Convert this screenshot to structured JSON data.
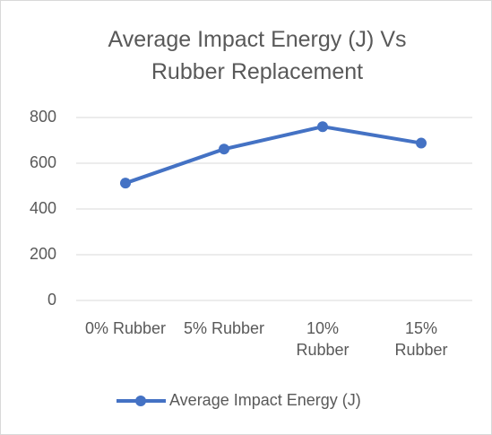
{
  "chart_data": {
    "type": "line",
    "title": "Average Impact Energy (J) Vs Rubber Replacement",
    "categories": [
      "0% Rubber",
      "5% Rubber",
      "10% Rubber",
      "15% Rubber"
    ],
    "series": [
      {
        "name": "Average Impact Energy (J)",
        "color": "#4472c4",
        "values": [
          513,
          662,
          760,
          688
        ]
      }
    ],
    "ylim": [
      0,
      800
    ],
    "yticks": [
      0,
      200,
      400,
      600,
      800
    ],
    "grid": true,
    "legend": "bottom"
  }
}
